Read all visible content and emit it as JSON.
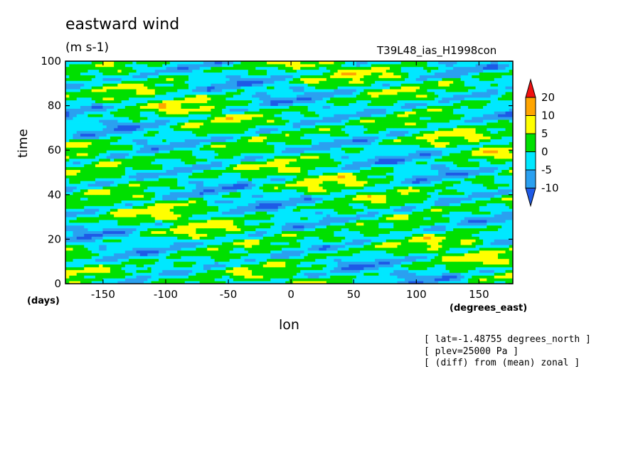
{
  "chart_data": {
    "type": "heatmap",
    "title": "eastward wind",
    "units": "(m s-1)",
    "experiment": "T39L48_ias_H1998con",
    "xlabel": "lon",
    "ylabel": "time",
    "x_unit": "(degrees_east)",
    "y_unit": "(days)",
    "xlim": [
      -180,
      177
    ],
    "ylim": [
      0,
      100
    ],
    "x_ticks": [
      -150,
      -100,
      -50,
      0,
      50,
      100,
      150
    ],
    "y_ticks": [
      0,
      20,
      40,
      60,
      80,
      100
    ],
    "x_tick_labels": [
      "-150",
      "-100",
      "-50",
      "0",
      "50",
      "100",
      "150"
    ],
    "y_tick_labels": [
      "0",
      "20",
      "40",
      "60",
      "80",
      "100"
    ],
    "colorbar": {
      "levels": [
        -10,
        -5,
        0,
        5,
        10,
        20
      ],
      "level_labels": [
        "-10",
        "-5",
        "0",
        "5",
        "10",
        "20"
      ],
      "colors": [
        "#1e5ae6",
        "#2aa0f0",
        "#00e8ff",
        "#00e000",
        "#ffff00",
        "#ffa500",
        "#f01010"
      ],
      "extend": "both"
    },
    "annotations": [
      "[ lat=-1.48755 degrees_north ]",
      "[ plev=25000 Pa ]",
      "[ (diff) from (mean) zonal ]"
    ],
    "grid": false,
    "legend_position": "right (colorbar)"
  }
}
